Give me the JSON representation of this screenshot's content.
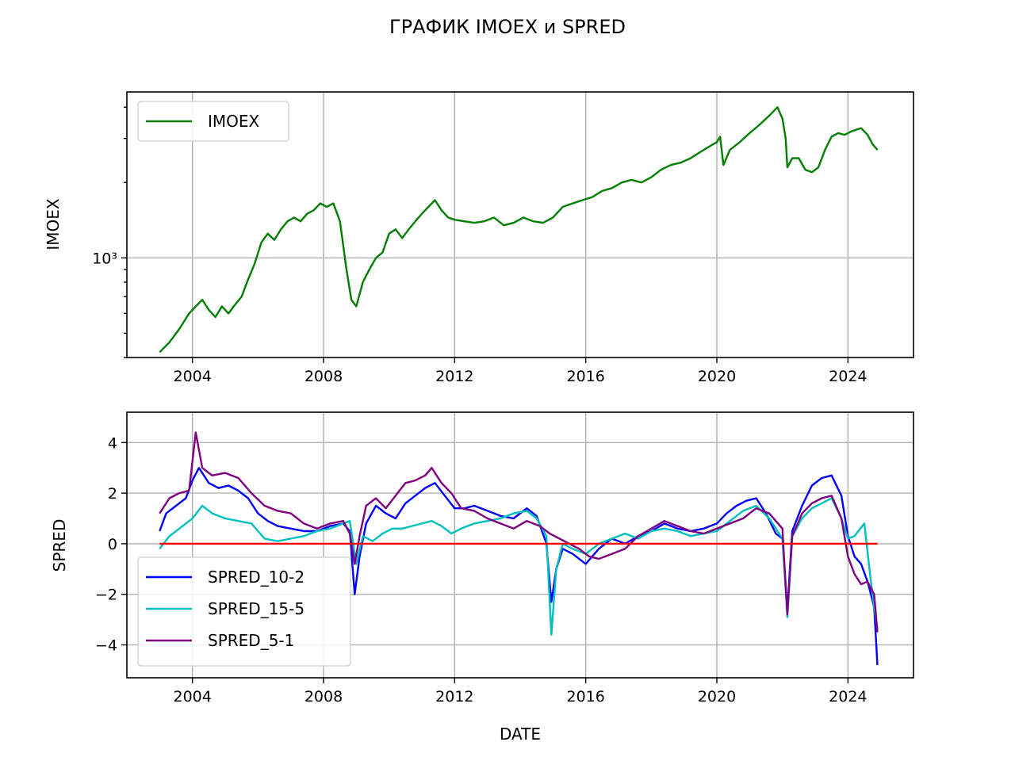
{
  "figure": {
    "title": "ГРАФИК IMOEX и SPRED"
  },
  "colors": {
    "IMOEX": "#007f00",
    "SPRED_10-2": "#0000ff",
    "SPRED_15-5": "#00bfbf",
    "SPRED_5-1": "#800080",
    "zero_line": "#ff0000"
  },
  "chart_data": [
    {
      "type": "line",
      "title": "",
      "xlabel": "",
      "ylabel": "IMOEX",
      "yscale": "log",
      "xlim": [
        2002.0,
        2026.0
      ],
      "ylim": [
        400,
        4600
      ],
      "xticks": [
        2004,
        2008,
        2012,
        2016,
        2020,
        2024
      ],
      "xtick_labels": [
        "2004",
        "2008",
        "2012",
        "2016",
        "2020",
        "2024"
      ],
      "yticks": [
        1000
      ],
      "ytick_labels": [
        "10³"
      ],
      "grid": true,
      "legend": {
        "position": "upper-left",
        "entries": [
          "IMOEX"
        ]
      },
      "series": [
        {
          "name": "IMOEX",
          "x": [
            2003.0,
            2003.3,
            2003.6,
            2003.9,
            2004.1,
            2004.3,
            2004.5,
            2004.7,
            2004.9,
            2005.1,
            2005.3,
            2005.5,
            2005.7,
            2005.9,
            2006.1,
            2006.3,
            2006.5,
            2006.7,
            2006.9,
            2007.1,
            2007.3,
            2007.5,
            2007.7,
            2007.9,
            2008.1,
            2008.3,
            2008.5,
            2008.7,
            2008.85,
            2009.0,
            2009.2,
            2009.4,
            2009.6,
            2009.8,
            2010.0,
            2010.2,
            2010.4,
            2010.6,
            2010.8,
            2011.0,
            2011.2,
            2011.4,
            2011.6,
            2011.8,
            2012.0,
            2012.3,
            2012.6,
            2012.9,
            2013.2,
            2013.5,
            2013.8,
            2014.1,
            2014.4,
            2014.7,
            2015.0,
            2015.3,
            2015.6,
            2015.9,
            2016.2,
            2016.5,
            2016.8,
            2017.1,
            2017.4,
            2017.7,
            2018.0,
            2018.3,
            2018.6,
            2018.9,
            2019.2,
            2019.5,
            2019.8,
            2020.0,
            2020.1,
            2020.2,
            2020.4,
            2020.7,
            2021.0,
            2021.3,
            2021.6,
            2021.85,
            2022.0,
            2022.1,
            2022.15,
            2022.3,
            2022.5,
            2022.7,
            2022.9,
            2023.1,
            2023.3,
            2023.5,
            2023.7,
            2023.9,
            2024.1,
            2024.4,
            2024.6,
            2024.75,
            2024.9
          ],
          "y": [
            420,
            460,
            520,
            600,
            640,
            680,
            620,
            580,
            640,
            600,
            650,
            700,
            820,
            950,
            1150,
            1250,
            1180,
            1300,
            1400,
            1450,
            1400,
            1500,
            1550,
            1650,
            1600,
            1650,
            1400,
            900,
            680,
            640,
            800,
            900,
            1000,
            1050,
            1250,
            1300,
            1200,
            1300,
            1400,
            1500,
            1600,
            1700,
            1550,
            1450,
            1420,
            1400,
            1380,
            1400,
            1450,
            1350,
            1380,
            1450,
            1400,
            1380,
            1450,
            1600,
            1650,
            1700,
            1750,
            1850,
            1900,
            2000,
            2050,
            2000,
            2100,
            2250,
            2350,
            2400,
            2500,
            2650,
            2800,
            2900,
            3050,
            2350,
            2700,
            2900,
            3150,
            3400,
            3700,
            4000,
            3600,
            3000,
            2300,
            2500,
            2500,
            2250,
            2200,
            2300,
            2700,
            3050,
            3150,
            3100,
            3200,
            3300,
            3100,
            2850,
            2700
          ]
        }
      ]
    },
    {
      "type": "line",
      "title": "",
      "xlabel": "DATE",
      "ylabel": "SPRED",
      "xlim": [
        2002.0,
        2026.0
      ],
      "ylim": [
        -5.3,
        5.2
      ],
      "xticks": [
        2004,
        2008,
        2012,
        2016,
        2020,
        2024
      ],
      "xtick_labels": [
        "2004",
        "2008",
        "2012",
        "2016",
        "2020",
        "2024"
      ],
      "yticks": [
        -4,
        -2,
        0,
        2,
        4
      ],
      "ytick_labels": [
        "−4",
        "−2",
        "0",
        "2",
        "4"
      ],
      "grid": true,
      "legend": {
        "position": "lower-left",
        "entries": [
          "SPRED_10-2",
          "SPRED_15-5",
          "SPRED_5-1"
        ]
      },
      "series": [
        {
          "name": "SPRED_10-2",
          "x": [
            2003.0,
            2003.2,
            2003.5,
            2003.8,
            2004.0,
            2004.2,
            2004.5,
            2004.8,
            2005.1,
            2005.4,
            2005.7,
            2006.0,
            2006.3,
            2006.6,
            2007.0,
            2007.4,
            2007.8,
            2008.2,
            2008.6,
            2008.8,
            2008.95,
            2009.1,
            2009.3,
            2009.6,
            2009.9,
            2010.2,
            2010.5,
            2010.8,
            2011.1,
            2011.4,
            2011.7,
            2012.0,
            2012.3,
            2012.6,
            2013.0,
            2013.4,
            2013.8,
            2014.2,
            2014.5,
            2014.8,
            2014.95,
            2015.1,
            2015.3,
            2015.6,
            2016.0,
            2016.4,
            2016.8,
            2017.2,
            2017.6,
            2018.0,
            2018.4,
            2018.8,
            2019.2,
            2019.6,
            2020.0,
            2020.3,
            2020.6,
            2020.9,
            2021.2,
            2021.5,
            2021.8,
            2022.0,
            2022.15,
            2022.3,
            2022.6,
            2022.9,
            2023.2,
            2023.5,
            2023.8,
            2024.0,
            2024.2,
            2024.4,
            2024.6,
            2024.8,
            2024.9
          ],
          "y": [
            0.5,
            1.2,
            1.5,
            1.8,
            2.5,
            3.0,
            2.4,
            2.2,
            2.3,
            2.1,
            1.8,
            1.2,
            0.9,
            0.7,
            0.6,
            0.5,
            0.5,
            0.7,
            0.8,
            0.5,
            -2.0,
            -0.5,
            0.8,
            1.5,
            1.2,
            1.0,
            1.6,
            1.9,
            2.2,
            2.4,
            1.9,
            1.4,
            1.4,
            1.5,
            1.3,
            1.1,
            1.0,
            1.4,
            1.1,
            0.0,
            -2.3,
            -1.0,
            -0.2,
            -0.4,
            -0.8,
            -0.2,
            0.2,
            0.0,
            0.3,
            0.5,
            0.8,
            0.6,
            0.5,
            0.6,
            0.8,
            1.2,
            1.5,
            1.7,
            1.8,
            1.2,
            0.4,
            0.2,
            -2.6,
            0.5,
            1.5,
            2.3,
            2.6,
            2.7,
            1.9,
            0.3,
            -0.5,
            -0.8,
            -1.5,
            -2.5,
            -4.8
          ]
        },
        {
          "name": "SPRED_15-5",
          "x": [
            2003.0,
            2003.3,
            2003.6,
            2004.0,
            2004.3,
            2004.6,
            2005.0,
            2005.4,
            2005.8,
            2006.2,
            2006.6,
            2007.0,
            2007.4,
            2007.8,
            2008.2,
            2008.6,
            2008.8,
            2009.0,
            2009.2,
            2009.5,
            2009.8,
            2010.1,
            2010.4,
            2010.7,
            2011.0,
            2011.3,
            2011.6,
            2011.9,
            2012.2,
            2012.6,
            2013.0,
            2013.4,
            2013.8,
            2014.2,
            2014.5,
            2014.8,
            2014.95,
            2015.1,
            2015.3,
            2015.6,
            2016.0,
            2016.4,
            2016.8,
            2017.2,
            2017.6,
            2018.0,
            2018.4,
            2018.8,
            2019.2,
            2019.6,
            2020.0,
            2020.4,
            2020.8,
            2021.2,
            2021.6,
            2022.0,
            2022.15,
            2022.3,
            2022.6,
            2022.9,
            2023.2,
            2023.5,
            2023.8,
            2024.0,
            2024.2,
            2024.5,
            2024.7,
            2024.9
          ],
          "y": [
            -0.2,
            0.3,
            0.6,
            1.0,
            1.5,
            1.2,
            1.0,
            0.9,
            0.8,
            0.2,
            0.1,
            0.2,
            0.3,
            0.5,
            0.6,
            0.8,
            0.9,
            -0.8,
            0.3,
            0.1,
            0.4,
            0.6,
            0.6,
            0.7,
            0.8,
            0.9,
            0.7,
            0.4,
            0.6,
            0.8,
            0.9,
            1.0,
            1.2,
            1.3,
            1.0,
            0.3,
            -3.6,
            -1.0,
            0.0,
            -0.2,
            -0.4,
            0.0,
            0.2,
            0.4,
            0.2,
            0.5,
            0.6,
            0.5,
            0.3,
            0.4,
            0.5,
            0.9,
            1.3,
            1.5,
            1.0,
            0.2,
            -2.9,
            0.3,
            1.0,
            1.4,
            1.6,
            1.8,
            1.0,
            0.2,
            0.3,
            0.8,
            -1.5,
            -3.4
          ]
        },
        {
          "name": "SPRED_5-1",
          "x": [
            2003.0,
            2003.3,
            2003.6,
            2003.9,
            2004.1,
            2004.3,
            2004.6,
            2005.0,
            2005.4,
            2005.8,
            2006.2,
            2006.6,
            2007.0,
            2007.4,
            2007.8,
            2008.2,
            2008.6,
            2008.8,
            2008.95,
            2009.1,
            2009.3,
            2009.6,
            2009.9,
            2010.2,
            2010.5,
            2010.8,
            2011.1,
            2011.3,
            2011.6,
            2011.9,
            2012.2,
            2012.6,
            2013.0,
            2013.4,
            2013.8,
            2014.2,
            2014.6,
            2014.9,
            2015.2,
            2015.5,
            2015.8,
            2016.1,
            2016.4,
            2016.8,
            2017.2,
            2017.6,
            2018.0,
            2018.4,
            2018.8,
            2019.2,
            2019.6,
            2020.0,
            2020.4,
            2020.8,
            2021.2,
            2021.6,
            2022.0,
            2022.15,
            2022.3,
            2022.6,
            2022.9,
            2023.2,
            2023.5,
            2023.8,
            2024.0,
            2024.2,
            2024.4,
            2024.6,
            2024.8,
            2024.9
          ],
          "y": [
            1.2,
            1.8,
            2.0,
            2.1,
            4.4,
            3.0,
            2.7,
            2.8,
            2.6,
            2.0,
            1.5,
            1.3,
            1.2,
            0.8,
            0.6,
            0.8,
            0.9,
            0.4,
            -0.8,
            0.3,
            1.5,
            1.8,
            1.4,
            1.9,
            2.4,
            2.5,
            2.7,
            3.0,
            2.4,
            2.0,
            1.4,
            1.3,
            1.0,
            0.8,
            0.6,
            0.9,
            0.7,
            0.4,
            0.2,
            0.0,
            -0.2,
            -0.5,
            -0.6,
            -0.4,
            -0.2,
            0.3,
            0.6,
            0.9,
            0.7,
            0.5,
            0.4,
            0.6,
            0.8,
            1.0,
            1.4,
            1.2,
            0.6,
            -2.8,
            0.3,
            1.2,
            1.6,
            1.8,
            1.9,
            1.0,
            -0.5,
            -1.2,
            -1.6,
            -1.5,
            -2.0,
            -3.5
          ]
        },
        {
          "name": "",
          "x": [
            2003.0,
            2024.9
          ],
          "y": [
            0,
            0
          ]
        }
      ]
    }
  ]
}
